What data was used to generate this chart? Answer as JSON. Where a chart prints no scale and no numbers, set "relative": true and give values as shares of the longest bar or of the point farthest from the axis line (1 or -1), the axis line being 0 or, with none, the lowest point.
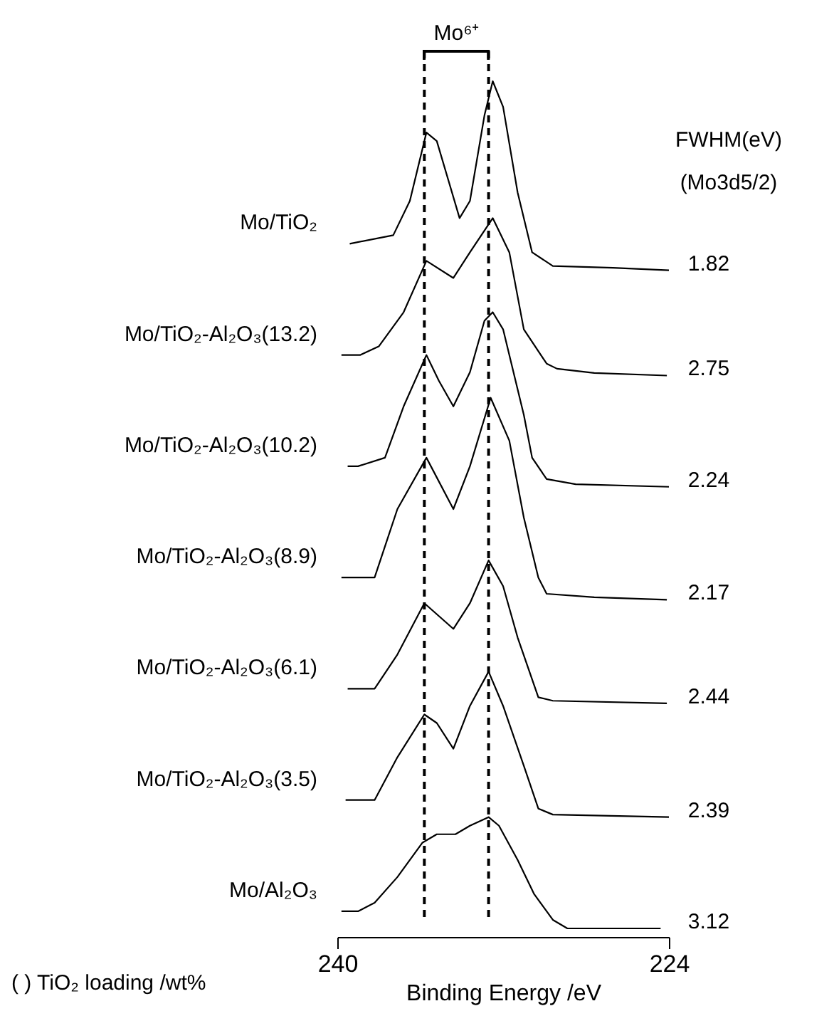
{
  "chart_data": {
    "type": "line",
    "relative": true,
    "xlabel": "Binding Energy /eV",
    "xlim": [
      240,
      224
    ],
    "xticks": [
      240,
      224
    ],
    "grid": false,
    "legend": false,
    "series": [
      {
        "name": "Mo/TiO₂",
        "color": "#000000",
        "x": [
          239.4,
          237.3,
          236.5,
          235.7,
          235.2,
          234.1,
          233.6,
          232.9,
          232.5,
          232.0,
          231.3,
          230.6,
          229.6,
          226.7,
          224.0
        ],
        "values": [
          0.81,
          0.82,
          0.86,
          0.94,
          0.93,
          0.84,
          0.86,
          0.96,
          1.0,
          0.97,
          0.87,
          0.8,
          0.784,
          0.782,
          0.779
        ]
      },
      {
        "name": "Mo/TiO₂-Al₂O₃(13.2)",
        "color": "#000000",
        "x": [
          239.8,
          238.9,
          238.0,
          236.8,
          235.7,
          234.4,
          233.6,
          232.5,
          231.7,
          231.0,
          229.9,
          229.4,
          227.6,
          224.1
        ],
        "values": [
          0.68,
          0.68,
          0.69,
          0.73,
          0.79,
          0.77,
          0.8,
          0.84,
          0.8,
          0.71,
          0.67,
          0.664,
          0.659,
          0.656
        ]
      },
      {
        "name": "Mo/TiO₂-Al₂O₃(10.2)",
        "color": "#000000",
        "x": [
          239.5,
          239.0,
          237.7,
          236.8,
          235.7,
          235.1,
          234.4,
          233.6,
          232.9,
          232.5,
          232.0,
          231.0,
          230.6,
          229.9,
          228.5,
          224.0
        ],
        "values": [
          0.55,
          0.55,
          0.56,
          0.62,
          0.68,
          0.65,
          0.62,
          0.66,
          0.72,
          0.73,
          0.71,
          0.61,
          0.56,
          0.535,
          0.529,
          0.526
        ]
      },
      {
        "name": "Mo/TiO₂-Al₂O₃(8.9)",
        "color": "#000000",
        "x": [
          239.8,
          238.2,
          237.1,
          235.7,
          234.4,
          233.6,
          232.6,
          231.7,
          231.0,
          230.3,
          229.9,
          227.6,
          224.1
        ],
        "values": [
          0.42,
          0.42,
          0.5,
          0.56,
          0.5,
          0.55,
          0.63,
          0.58,
          0.49,
          0.42,
          0.401,
          0.397,
          0.394
        ]
      },
      {
        "name": "Mo/TiO₂-Al₂O₃(6.1)",
        "color": "#000000",
        "x": [
          239.5,
          238.2,
          237.1,
          235.8,
          234.4,
          233.6,
          232.7,
          232.0,
          231.3,
          230.3,
          229.6,
          224.1
        ],
        "values": [
          0.29,
          0.29,
          0.33,
          0.39,
          0.36,
          0.39,
          0.44,
          0.41,
          0.35,
          0.28,
          0.276,
          0.273
        ]
      },
      {
        "name": "Mo/TiO₂-Al₂O₃(3.5)",
        "color": "#000000",
        "x": [
          239.6,
          238.2,
          237.1,
          235.8,
          235.2,
          234.4,
          233.6,
          232.7,
          232.0,
          231.0,
          230.3,
          229.6,
          224.0
        ],
        "values": [
          0.16,
          0.16,
          0.21,
          0.26,
          0.25,
          0.22,
          0.27,
          0.31,
          0.27,
          0.2,
          0.15,
          0.143,
          0.14
        ]
      },
      {
        "name": "Mo/Al₂O₃",
        "color": "#000000",
        "x": [
          239.8,
          239.0,
          238.2,
          237.1,
          235.9,
          235.2,
          234.3,
          233.6,
          232.7,
          232.2,
          231.3,
          230.5,
          229.6,
          228.9,
          224.4
        ],
        "values": [
          0.03,
          0.03,
          0.04,
          0.07,
          0.11,
          0.12,
          0.12,
          0.13,
          0.14,
          0.13,
          0.09,
          0.05,
          0.02,
          0.01,
          0.01
        ]
      }
    ],
    "ref_lines": [
      {
        "axis": "x",
        "value": 235.8,
        "line_style": "dashed",
        "color": "#000000"
      },
      {
        "axis": "x",
        "value": 232.7,
        "line_style": "dashed",
        "color": "#000000"
      }
    ],
    "annotations": [
      "Mo⁶⁺",
      "FWHM(eV)",
      "(Mo3d5/2)",
      "1.82",
      "2.75",
      "2.24",
      "2.17",
      "2.44",
      "2.39",
      "3.12",
      "( ) TiO₂ loading /wt%"
    ]
  }
}
